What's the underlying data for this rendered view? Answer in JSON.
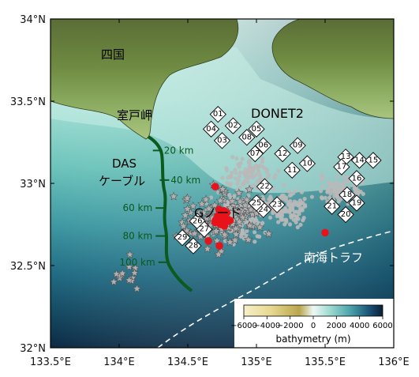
{
  "map": {
    "lon_range": [
      133.5,
      136.0
    ],
    "lat_range": [
      32.0,
      34.0
    ],
    "x_ticks": [
      {
        "value": 133.5,
        "label": "133.5°E"
      },
      {
        "value": 134.0,
        "label": "134°E"
      },
      {
        "value": 134.5,
        "label": "134.5°E"
      },
      {
        "value": 135.0,
        "label": "135°E"
      },
      {
        "value": 135.5,
        "label": "135.5°E"
      },
      {
        "value": 136.0,
        "label": "136°E"
      }
    ],
    "y_ticks": [
      {
        "value": 34.0,
        "label": "34°N"
      },
      {
        "value": 33.5,
        "label": "33.5°N"
      },
      {
        "value": 33.0,
        "label": "33°N"
      },
      {
        "value": 32.5,
        "label": "32.5°N"
      },
      {
        "value": 32.0,
        "label": "32°N"
      }
    ]
  },
  "labels": {
    "shikoku": "四国",
    "cape_muroto": "室戸岬",
    "donet2": "DONET2",
    "das": "DAS",
    "cable": "ケーブル",
    "g_node": "Gノード",
    "nankai_trough": "南海トラフ"
  },
  "cable_distances": [
    {
      "label": "20 km",
      "lon": 134.28,
      "lat": 33.2
    },
    {
      "label": "40 km",
      "lon": 134.33,
      "lat": 33.02
    },
    {
      "label": "60 km",
      "lon": 134.3,
      "lat": 32.85
    },
    {
      "label": "80 km",
      "lon": 134.3,
      "lat": 32.68
    },
    {
      "label": "100 km",
      "lon": 134.32,
      "lat": 32.52
    }
  ],
  "stations": [
    {
      "id": "01",
      "lon": 134.72,
      "lat": 33.42
    },
    {
      "id": "02",
      "lon": 134.83,
      "lat": 33.35
    },
    {
      "id": "03",
      "lon": 134.75,
      "lat": 33.26
    },
    {
      "id": "04",
      "lon": 134.67,
      "lat": 33.33
    },
    {
      "id": "05",
      "lon": 135.0,
      "lat": 33.33
    },
    {
      "id": "06",
      "lon": 135.05,
      "lat": 33.23
    },
    {
      "id": "07",
      "lon": 134.99,
      "lat": 33.18
    },
    {
      "id": "08",
      "lon": 134.93,
      "lat": 33.28
    },
    {
      "id": "09",
      "lon": 135.3,
      "lat": 33.23
    },
    {
      "id": "10",
      "lon": 135.37,
      "lat": 33.12
    },
    {
      "id": "11",
      "lon": 135.26,
      "lat": 33.08
    },
    {
      "id": "12",
      "lon": 135.19,
      "lat": 33.18
    },
    {
      "id": "13",
      "lon": 135.65,
      "lat": 33.16
    },
    {
      "id": "14",
      "lon": 135.75,
      "lat": 33.14
    },
    {
      "id": "15",
      "lon": 135.85,
      "lat": 33.14
    },
    {
      "id": "16",
      "lon": 135.73,
      "lat": 33.03
    },
    {
      "id": "17",
      "lon": 135.62,
      "lat": 33.1
    },
    {
      "id": "18",
      "lon": 135.66,
      "lat": 32.93
    },
    {
      "id": "19",
      "lon": 135.73,
      "lat": 32.88
    },
    {
      "id": "20",
      "lon": 135.65,
      "lat": 32.81
    },
    {
      "id": "21",
      "lon": 135.55,
      "lat": 32.86
    },
    {
      "id": "22",
      "lon": 135.06,
      "lat": 32.98
    },
    {
      "id": "23",
      "lon": 135.15,
      "lat": 32.87
    },
    {
      "id": "24",
      "lon": 135.05,
      "lat": 32.84
    },
    {
      "id": "25",
      "lon": 135.0,
      "lat": 32.88
    },
    {
      "id": "26",
      "lon": 134.57,
      "lat": 32.77
    },
    {
      "id": "27",
      "lon": 134.62,
      "lat": 32.72
    },
    {
      "id": "28",
      "lon": 134.54,
      "lat": 32.62
    },
    {
      "id": "29",
      "lon": 134.46,
      "lat": 32.67
    }
  ],
  "legend": {
    "title": "bathymetry (m)",
    "ticks": [
      {
        "value": -6000,
        "label": "−6000"
      },
      {
        "value": -4000,
        "label": "−4000"
      },
      {
        "value": -2000,
        "label": "−2000"
      },
      {
        "value": 0,
        "label": "0"
      },
      {
        "value": 2000,
        "label": "2000"
      },
      {
        "value": 4000,
        "label": "4000"
      },
      {
        "value": 6000,
        "label": "6000"
      }
    ]
  },
  "colors": {
    "cable": "#0b5a1e",
    "events_red": "#e8121b",
    "events_gray": "#b9b9b9",
    "land_high": "#5f7a3a",
    "shelf": "#bfe9df",
    "deep": "#0e3550"
  }
}
